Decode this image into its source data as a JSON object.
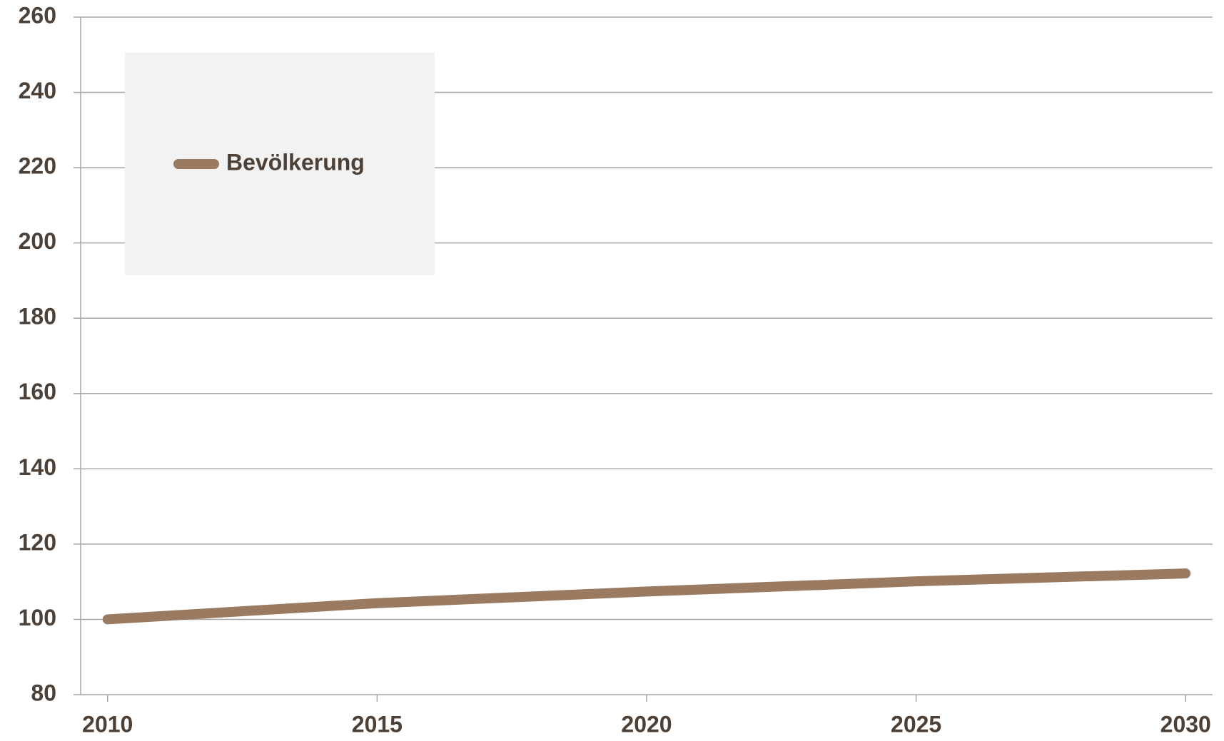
{
  "chart_data": {
    "type": "line",
    "x": [
      2010,
      2015,
      2020,
      2025,
      2030
    ],
    "series": [
      {
        "name": "Bevölkerung",
        "color": "#9a7b61",
        "values": [
          100,
          104.3,
          107.4,
          110.1,
          112.2
        ]
      }
    ],
    "xlim": [
      2009.5,
      2030.5
    ],
    "xticks": [
      2010,
      2015,
      2020,
      2025,
      2030
    ],
    "ylim": [
      80,
      260
    ],
    "yticks": [
      80,
      100,
      120,
      140,
      160,
      180,
      200,
      220,
      240,
      260
    ],
    "grid": true,
    "legend": "upper left"
  }
}
